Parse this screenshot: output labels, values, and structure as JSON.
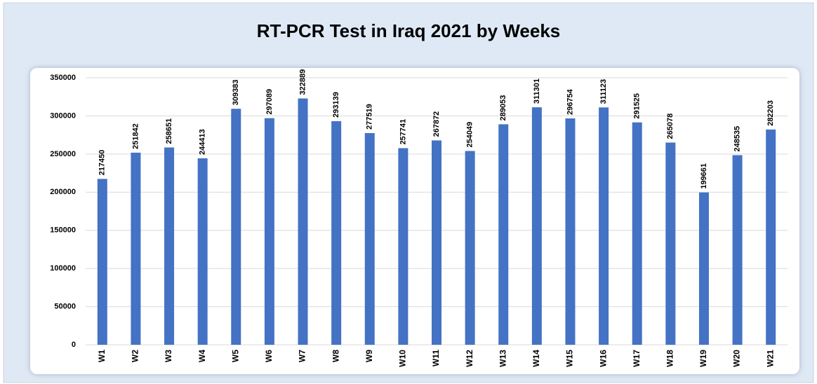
{
  "chart_data": {
    "type": "bar",
    "title": "RT-PCR Test in Iraq 2021 by Weeks",
    "categories": [
      "W1",
      "W2",
      "W3",
      "W4",
      "W5",
      "W6",
      "W7",
      "W8",
      "W9",
      "W10",
      "W11",
      "W12",
      "W13",
      "W14",
      "W15",
      "W16",
      "W17",
      "W18",
      "W19",
      "W20",
      "W21"
    ],
    "values": [
      217450,
      251842,
      258651,
      244413,
      309383,
      297089,
      322889,
      293139,
      277519,
      257741,
      267872,
      254049,
      289053,
      311301,
      296754,
      311123,
      291525,
      265078,
      199661,
      248535,
      282203
    ],
    "color": "#4472c4",
    "ylim": [
      0,
      350000
    ],
    "yticks": [
      0,
      50000,
      100000,
      150000,
      200000,
      250000,
      300000,
      350000
    ],
    "grid": true
  }
}
